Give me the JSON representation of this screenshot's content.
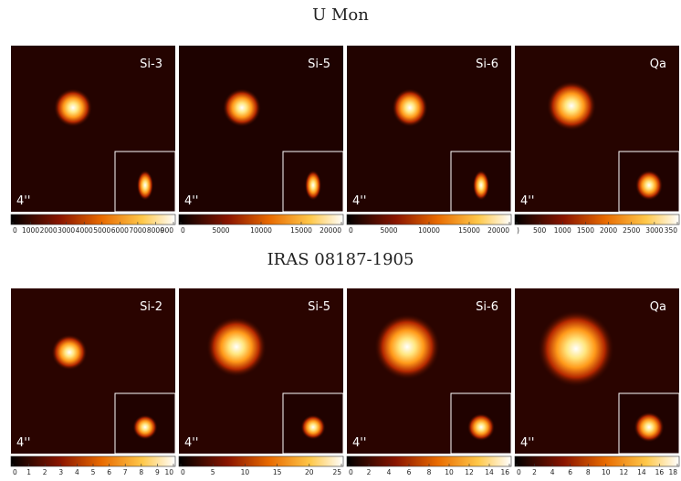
{
  "rows": [
    {
      "title": "U Mon",
      "panels": [
        {
          "label": "Si-3",
          "scale": "4''",
          "colorbar": [
            "0",
            "1000",
            "2000",
            "3000",
            "4000",
            "5000",
            "6000",
            "7000",
            "8000",
            "900"
          ]
        },
        {
          "label": "Si-5",
          "scale": "4''",
          "colorbar": [
            "0",
            "5000",
            "10000",
            "15000",
            "20000"
          ]
        },
        {
          "label": "Si-6",
          "scale": "4''",
          "colorbar": [
            "0",
            "5000",
            "10000",
            "15000",
            "20000"
          ]
        },
        {
          "label": "Qa",
          "scale": "4''",
          "colorbar": [
            ")",
            "500",
            "1000",
            "1500",
            "2000",
            "2500",
            "3000",
            "350"
          ]
        }
      ]
    },
    {
      "title": "IRAS 08187-1905",
      "panels": [
        {
          "label": "Si-2",
          "scale": "4''",
          "colorbar": [
            "0",
            "1",
            "2",
            "3",
            "4",
            "5",
            "6",
            "7",
            "8",
            "9",
            "10"
          ]
        },
        {
          "label": "Si-5",
          "scale": "4''",
          "colorbar": [
            "0",
            "5",
            "10",
            "15",
            "20",
            "25"
          ]
        },
        {
          "label": "Si-6",
          "scale": "4''",
          "colorbar": [
            "0",
            "2",
            "4",
            "6",
            "8",
            "10",
            "12",
            "14",
            "16"
          ]
        },
        {
          "label": "Qa",
          "scale": "4''",
          "colorbar": [
            "0",
            "2",
            "4",
            "6",
            "8",
            "10",
            "12",
            "14",
            "16",
            "18"
          ]
        }
      ]
    }
  ]
}
